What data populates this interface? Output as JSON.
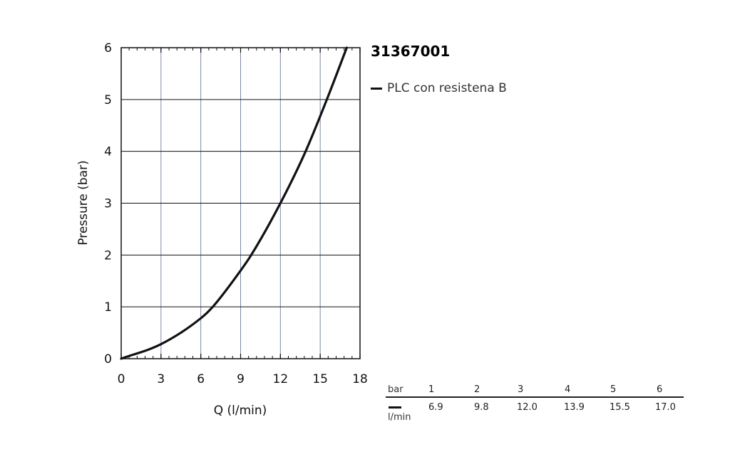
{
  "chart_data": {
    "type": "line",
    "title": "31367001",
    "xlabel": "Q (l/min)",
    "ylabel": "Pressure (bar)",
    "xlim": [
      0,
      18
    ],
    "ylim": [
      0,
      6
    ],
    "x_ticks": [
      "0",
      "3",
      "6",
      "9",
      "12",
      "15",
      "18"
    ],
    "y_ticks": [
      "0",
      "1",
      "2",
      "3",
      "4",
      "5",
      "6"
    ],
    "grid": true,
    "legend_position": "right",
    "series": [
      {
        "name": "PLC con resistena B",
        "color": "#111111",
        "x": [
          0,
          3,
          6,
          6.9,
          9,
          9.8,
          12.0,
          13.9,
          15.5,
          17.0
        ],
        "y": [
          0,
          0.28,
          0.78,
          1.0,
          1.7,
          2.0,
          3.0,
          4.0,
          5.0,
          6.0
        ]
      }
    ],
    "table": {
      "header_unit": "bar",
      "body_unit": "l/min",
      "pressures": [
        "1",
        "2",
        "3",
        "4",
        "5",
        "6"
      ],
      "flows": [
        "6.9",
        "9.8",
        "12.0",
        "13.9",
        "15.5",
        "17.0"
      ]
    }
  }
}
